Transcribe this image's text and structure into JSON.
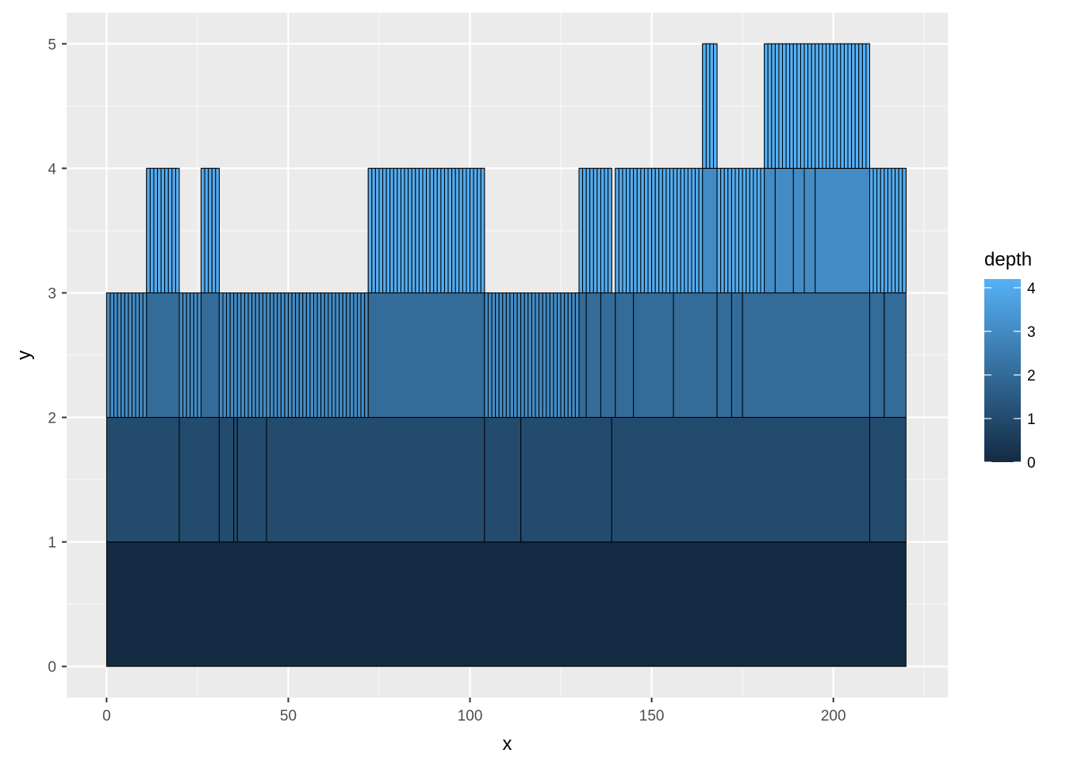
{
  "chart_data": {
    "type": "partition",
    "title": "",
    "xlabel": "x",
    "ylabel": "y",
    "xlim": [
      -11,
      231.5
    ],
    "ylim": [
      -0.25,
      5.25
    ],
    "x_ticks": [
      0,
      50,
      100,
      150,
      200
    ],
    "y_ticks": [
      0,
      1,
      2,
      3,
      4,
      5
    ],
    "grid": true,
    "legend": {
      "title": "depth",
      "placement": "right",
      "ticks": [
        0,
        1,
        2,
        3,
        4
      ],
      "range": [
        0,
        4.2
      ],
      "low_color": "#132B43",
      "high_color": "#56B1F7"
    },
    "levels": [
      {
        "depth": 0,
        "y": [
          0,
          1
        ],
        "blocks": [
          {
            "x": [
              0,
              220
            ],
            "children": 0
          }
        ]
      },
      {
        "depth": 1,
        "y": [
          1,
          2
        ],
        "blocks": [
          {
            "x": [
              0,
              20
            ],
            "children": 0
          },
          {
            "x": [
              20,
              31
            ],
            "children": 0
          },
          {
            "x": [
              31,
              35
            ],
            "children": 0
          },
          {
            "x": [
              35,
              36
            ],
            "children": 0
          },
          {
            "x": [
              36,
              44
            ],
            "children": 0
          },
          {
            "x": [
              44,
              104
            ],
            "children": 0
          },
          {
            "x": [
              104,
              114
            ],
            "children": 0
          },
          {
            "x": [
              114,
              139
            ],
            "children": 0
          },
          {
            "x": [
              139,
              210
            ],
            "children": 0
          },
          {
            "x": [
              210,
              220
            ],
            "children": 0
          }
        ]
      },
      {
        "depth": 2,
        "y": [
          2,
          3
        ],
        "blocks": [
          {
            "x": [
              0,
              11
            ],
            "children": 11
          },
          {
            "x": [
              11,
              20
            ],
            "children": 0
          },
          {
            "x": [
              20,
              26
            ],
            "children": 6
          },
          {
            "x": [
              26,
              31
            ],
            "children": 0
          },
          {
            "x": [
              31,
              72
            ],
            "children": 41
          },
          {
            "x": [
              72,
              104
            ],
            "children": 0
          },
          {
            "x": [
              104,
              130
            ],
            "children": 26
          },
          {
            "x": [
              130,
              132
            ],
            "children": 0
          },
          {
            "x": [
              132,
              136
            ],
            "children": 0
          },
          {
            "x": [
              136,
              140
            ],
            "children": 0
          },
          {
            "x": [
              140,
              145
            ],
            "children": 0
          },
          {
            "x": [
              145,
              156
            ],
            "children": 0
          },
          {
            "x": [
              156,
              168
            ],
            "children": 0
          },
          {
            "x": [
              168,
              172
            ],
            "children": 0
          },
          {
            "x": [
              172,
              175
            ],
            "children": 0
          },
          {
            "x": [
              175,
              210
            ],
            "children": 0
          },
          {
            "x": [
              210,
              214
            ],
            "children": 0
          },
          {
            "x": [
              214,
              220
            ],
            "children": 0
          }
        ]
      },
      {
        "depth": 3,
        "y": [
          3,
          4
        ],
        "blocks": [
          {
            "x": [
              11,
              20
            ],
            "children": 9
          },
          {
            "x": [
              26,
              31
            ],
            "children": 5
          },
          {
            "x": [
              72,
              104
            ],
            "children": 32
          },
          {
            "x": [
              130,
              139
            ],
            "children": 9
          },
          {
            "x": [
              140,
              164
            ],
            "children": 24
          },
          {
            "x": [
              164,
              168
            ],
            "children": 0
          },
          {
            "x": [
              168,
              181
            ],
            "children": 13
          },
          {
            "x": [
              181,
              184
            ],
            "children": 0
          },
          {
            "x": [
              184,
              189
            ],
            "children": 0
          },
          {
            "x": [
              189,
              192
            ],
            "children": 0
          },
          {
            "x": [
              192,
              195
            ],
            "children": 0
          },
          {
            "x": [
              195,
              210
            ],
            "children": 0
          },
          {
            "x": [
              210,
              220
            ],
            "children": 10
          }
        ]
      },
      {
        "depth": 4,
        "y": [
          4,
          5
        ],
        "blocks": [
          {
            "x": [
              164,
              168
            ],
            "children": 4
          },
          {
            "x": [
              181,
              210
            ],
            "children": 29
          }
        ]
      }
    ]
  }
}
